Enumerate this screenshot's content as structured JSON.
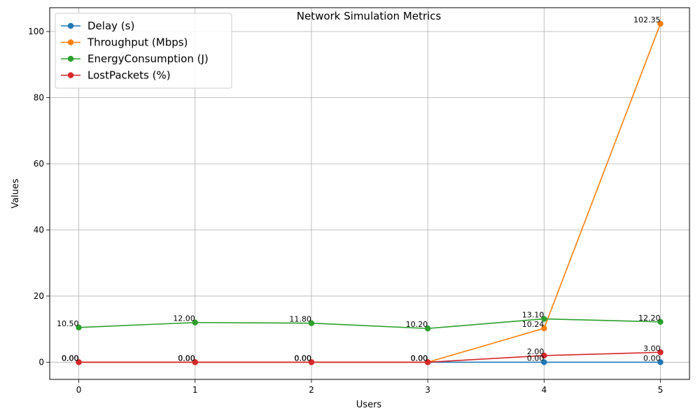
{
  "chart_data": {
    "type": "line",
    "title": "Network Simulation Metrics",
    "xlabel": "Users",
    "ylabel": "Values",
    "x": [
      0,
      1,
      2,
      3,
      4,
      5
    ],
    "xlim": [
      -0.25,
      5.25
    ],
    "ylim": [
      -5.2,
      107.2
    ],
    "xticks": [
      0,
      1,
      2,
      3,
      4,
      5
    ],
    "yticks": [
      0,
      20,
      40,
      60,
      80,
      100
    ],
    "grid": true,
    "legend_position": "top-left",
    "series": [
      {
        "name": "Delay (s)",
        "color": "#1f77b4",
        "values": [
          0.0,
          0.0,
          0.0,
          0.0,
          0.0,
          0.0
        ],
        "labels": [
          "0.00",
          "0.00",
          "0.00",
          "0.00",
          "0.00",
          "0.00"
        ]
      },
      {
        "name": "Throughput (Mbps)",
        "color": "#ff7f0e",
        "values": [
          0.0,
          0.0,
          0.0,
          0.0,
          10.24,
          102.35
        ],
        "labels": [
          "0.00",
          "0.00",
          "0.00",
          "0.00",
          "10.24",
          "102.35"
        ]
      },
      {
        "name": "EnergyConsumption (J)",
        "color": "#2ca02c",
        "values": [
          10.5,
          12.0,
          11.8,
          10.2,
          13.1,
          12.2
        ],
        "labels": [
          "10.50",
          "12.00",
          "11.80",
          "10.20",
          "13.10",
          "12.20"
        ]
      },
      {
        "name": "LostPackets (%)",
        "color": "#d62728",
        "values": [
          0.0,
          0.0,
          0.0,
          0.0,
          2.0,
          3.0
        ],
        "labels": [
          "0.00",
          "0.00",
          "0.00",
          "0.00",
          "2.00",
          "3.00"
        ]
      }
    ]
  }
}
